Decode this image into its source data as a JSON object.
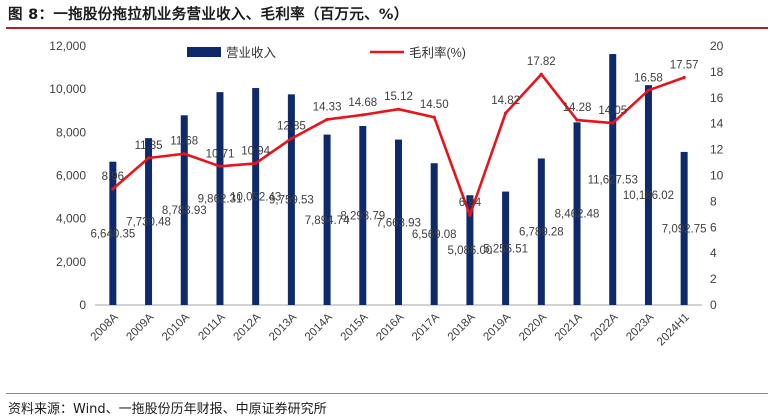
{
  "header": {
    "title": "图 8：一拖股份拖拉机业务营业收入、毛利率（百万元、%）"
  },
  "footer": {
    "source": "资料来源：Wind、一拖股份历年财报、中原证券研究所"
  },
  "chart_data": {
    "type": "bar+line",
    "title": "一拖股份拖拉机业务营业收入、毛利率（百万元、%）",
    "categories": [
      "2008A",
      "2009A",
      "2010A",
      "2011A",
      "2012A",
      "2013A",
      "2014A",
      "2015A",
      "2016A",
      "2017A",
      "2018A",
      "2019A",
      "2020A",
      "2021A",
      "2022A",
      "2023A",
      "2024H1"
    ],
    "series": [
      {
        "name": "营业收入",
        "type": "bar",
        "axis": "left",
        "color": "#0f2a6b",
        "values": [
          6640.35,
          7730.48,
          8788.93,
          9862.31,
          10052.43,
          9759.53,
          7894.74,
          8293.79,
          7663.93,
          6569.08,
          5086.0,
          5255.51,
          6789.28,
          8462.48,
          11627.53,
          10186.02,
          7092.75
        ],
        "labels": [
          "6,640.35",
          "7,730.48",
          "8,788.93",
          "9,862.31",
          "10,052.43",
          "9,759.53",
          "7,894.74",
          "8,293.79",
          "7,663.93",
          "6,569.08",
          "5,086.00",
          "5,255.51",
          "6,789.28",
          "8,462.48",
          "11,627.53",
          "10,186.02",
          "7,092.75"
        ]
      },
      {
        "name": "毛利率(%)",
        "type": "line",
        "axis": "right",
        "color": "#e8141b",
        "values": [
          8.96,
          11.35,
          11.68,
          10.71,
          10.94,
          12.85,
          14.33,
          14.68,
          15.12,
          14.5,
          6.94,
          14.82,
          17.82,
          14.28,
          14.05,
          16.58,
          17.57
        ],
        "labels": [
          "8.96",
          "11.35",
          "11.68",
          "10.71",
          "10.94",
          "12.85",
          "14.33",
          "14.68",
          "15.12",
          "14.50",
          "6.94",
          "14.82",
          "17.82",
          "14.28",
          "14.05",
          "16.58",
          "17.57"
        ]
      }
    ],
    "y_left": {
      "min": 0,
      "max": 12000,
      "ticks": [
        "0",
        "2,000",
        "4,000",
        "6,000",
        "8,000",
        "10,000",
        "12,000"
      ],
      "tick_values": [
        0,
        2000,
        4000,
        6000,
        8000,
        10000,
        12000
      ]
    },
    "y_right": {
      "min": 0,
      "max": 20,
      "ticks": [
        "0",
        "2",
        "4",
        "6",
        "8",
        "10",
        "12",
        "14",
        "16",
        "18",
        "20"
      ],
      "tick_values": [
        0,
        2,
        4,
        6,
        8,
        10,
        12,
        14,
        16,
        18,
        20
      ]
    },
    "legend": {
      "position": "top",
      "items": [
        "营业收入",
        "毛利率(%)"
      ]
    },
    "grid": false
  }
}
